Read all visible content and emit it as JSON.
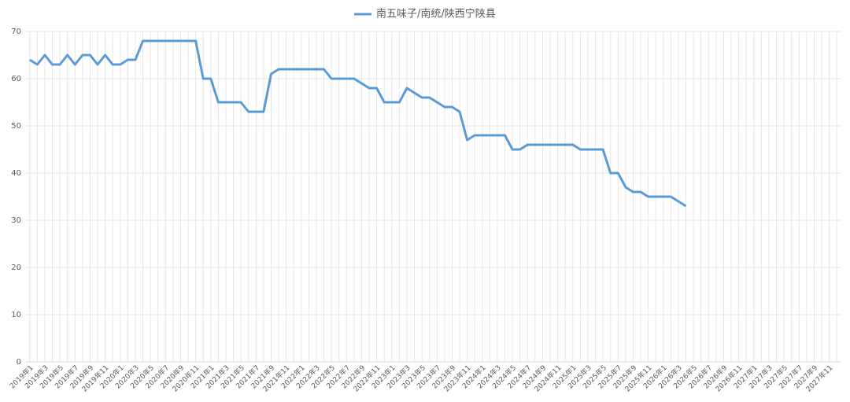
{
  "chart_data": {
    "type": "line",
    "categories": [
      "2019年1",
      null,
      "2019年3",
      null,
      "2019年5",
      null,
      "2019年7",
      null,
      "2019年9",
      null,
      "2019年11",
      null,
      "2020年1",
      null,
      "2020年3",
      null,
      "2020年5",
      null,
      "2020年7",
      null,
      "2020年9",
      null,
      "2020年11",
      null,
      "2021年1",
      null,
      "2021年3",
      null,
      "2021年5",
      null,
      "2021年7",
      null,
      "2021年9",
      null,
      "2021年11",
      null,
      "2022年1",
      null,
      "2022年3",
      null,
      "2022年5",
      null,
      "2022年7",
      null,
      "2022年9",
      null,
      "2022年11",
      null,
      "2023年1",
      null,
      "2023年3",
      null,
      "2023年5",
      null,
      "2023年7",
      null,
      "2023年9",
      null,
      "2023年11",
      null,
      "2024年1",
      null,
      "2024年3",
      null,
      "2024年5",
      null,
      "2024年7",
      null,
      "2024年9",
      null,
      "2024年11",
      null,
      "2025年1",
      null,
      "2025年3",
      null,
      "2025年5",
      null,
      "2025年7",
      null,
      "2025年9",
      null,
      "2025年11",
      null,
      "2026年1",
      null,
      "2026年3",
      null,
      "2026年5",
      null,
      "2026年7",
      null,
      "2026年9",
      null,
      "2026年11",
      null,
      "2027年1",
      null,
      "2027年3",
      null,
      "2027年5",
      null,
      "2027年7",
      null,
      "2027年9",
      null,
      "2027年11",
      null
    ],
    "series": [
      {
        "name": "南五味子/南统/陕西宁陕县",
        "color": "#5b9bd5",
        "values": [
          64,
          63,
          65,
          63,
          63,
          65,
          63,
          65,
          65,
          63,
          65,
          63,
          63,
          64,
          64,
          68,
          68,
          68,
          68,
          68,
          68,
          68,
          68,
          60,
          60,
          55,
          55,
          55,
          55,
          53,
          53,
          53,
          61,
          62,
          62,
          62,
          62,
          62,
          62,
          62,
          60,
          60,
          60,
          60,
          59,
          58,
          58,
          55,
          55,
          55,
          58,
          57,
          56,
          56,
          55,
          54,
          54,
          53,
          47,
          48,
          48,
          48,
          48,
          48,
          45,
          45,
          46,
          46,
          46,
          46,
          46,
          46,
          46,
          45,
          45,
          45,
          45,
          40,
          40,
          37,
          36,
          36,
          35,
          35,
          35,
          35,
          34,
          33,
          null,
          null,
          null,
          null,
          null,
          null,
          null,
          null,
          null,
          null,
          null,
          null,
          null,
          null,
          null,
          null,
          null,
          null,
          null,
          null
        ]
      }
    ],
    "ylim": [
      0,
      70
    ],
    "yticks": [
      0,
      10,
      20,
      30,
      40,
      50,
      60,
      70
    ],
    "grid": true,
    "legend": "top"
  }
}
